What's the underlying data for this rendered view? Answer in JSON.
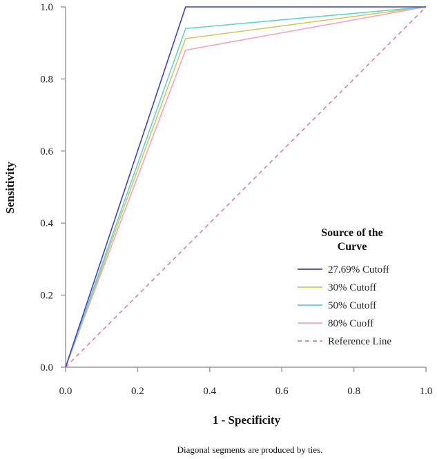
{
  "chart_data": {
    "type": "line",
    "title": "",
    "xlabel": "1 - Specificity",
    "ylabel": "Sensitivity",
    "xlim": [
      0,
      1
    ],
    "ylim": [
      0,
      1
    ],
    "xticks": [
      "0.0",
      "0.2",
      "0.4",
      "0.6",
      "0.8",
      "1.0"
    ],
    "yticks": [
      "0.0",
      "0.2",
      "0.4",
      "0.6",
      "0.8",
      "1.0"
    ],
    "grid": false,
    "legend": {
      "title_line1": "Source of the",
      "title_line2": "Curve",
      "placement": "bottom-right"
    },
    "series": [
      {
        "name": "27.69% Cutoff",
        "color": "#3b3fd1",
        "dashed": false,
        "points": [
          [
            0,
            0
          ],
          [
            0.333,
            1.0
          ],
          [
            1,
            1
          ]
        ]
      },
      {
        "name": "30% Cutoff",
        "color": "#d8c45a",
        "dashed": false,
        "points": [
          [
            0,
            0
          ],
          [
            0.333,
            0.912
          ],
          [
            1,
            1
          ]
        ]
      },
      {
        "name": "50% Cutoff",
        "color": "#5fd3cf",
        "dashed": false,
        "points": [
          [
            0,
            0
          ],
          [
            0.333,
            0.94
          ],
          [
            1,
            1
          ]
        ]
      },
      {
        "name": "80% Cuoff",
        "color": "#f3a3c4",
        "dashed": false,
        "points": [
          [
            0,
            0
          ],
          [
            0.333,
            0.88
          ],
          [
            1,
            1
          ]
        ]
      },
      {
        "name": "Reference Line",
        "color": "#e07f8f",
        "dashed": true,
        "points": [
          [
            0,
            0
          ],
          [
            1,
            1
          ]
        ]
      }
    ],
    "footnote": "Diagonal segments are produced by ties."
  }
}
